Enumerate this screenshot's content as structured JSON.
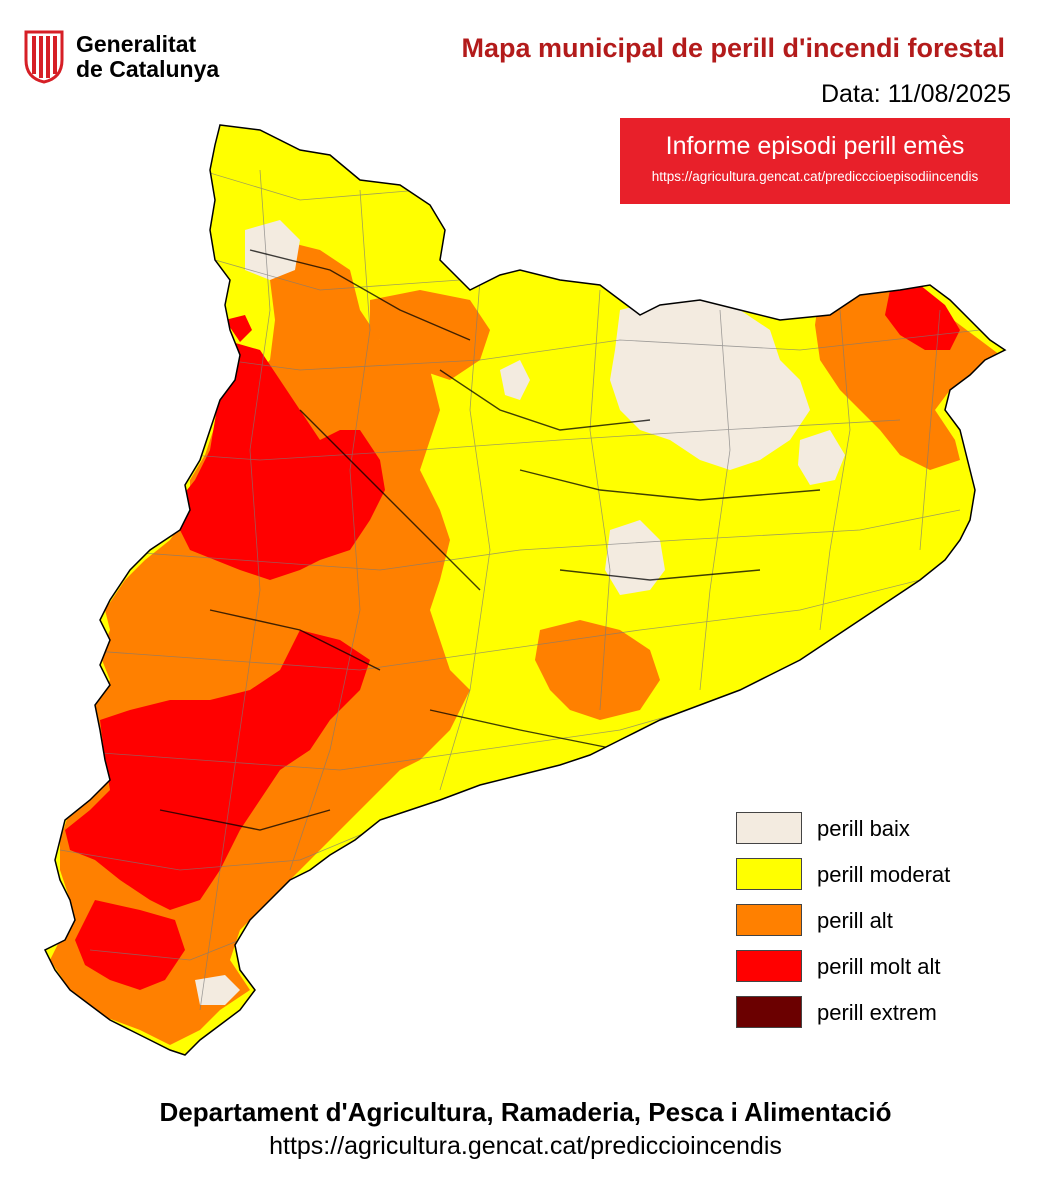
{
  "header": {
    "logo": {
      "line1": "Generalitat",
      "line2": "de Catalunya",
      "emblem_color": "#d61f26"
    },
    "title": "Mapa municipal de perill d'incendi forestal",
    "date_label": "Data:",
    "date_value": "11/08/2025"
  },
  "alert": {
    "title": "Informe episodi perill emès",
    "link": "https://agricultura.gencat.cat/predicccioepisodiincendis",
    "color": "#e8202a"
  },
  "legend": {
    "items": [
      {
        "label": "perill baix",
        "color": "#f3ebe0"
      },
      {
        "label": "perill moderat",
        "color": "#ffff00"
      },
      {
        "label": "perill alt",
        "color": "#ff8000"
      },
      {
        "label": "perill molt alt",
        "color": "#ff0000"
      },
      {
        "label": "perill extrem",
        "color": "#6b0000"
      }
    ]
  },
  "footer": {
    "department": "Departament d'Agricultura, Ramaderia, Pesca i Alimentació",
    "url": "https://agricultura.gencat.cat/prediccioincendis"
  }
}
